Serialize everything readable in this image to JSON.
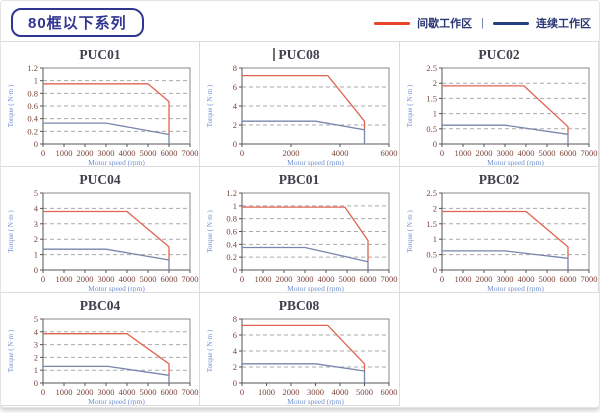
{
  "page": {
    "title": "80框以下系列",
    "legend": {
      "intermittent_label": "间歇工作区",
      "separator": "|",
      "continuous_label": "连续工作区"
    }
  },
  "colors": {
    "header_navy": "#30358f",
    "legend_red": "#e8432d",
    "legend_blue": "#24407e",
    "plot_red": "#e06450",
    "plot_blue": "#7886ad",
    "tick_label": "#7d4339",
    "axis_label_blue": "#6f8fd0",
    "grid_gray": "#aaaaaa",
    "frame_gray": "#8a8a8a",
    "axis_dark": "#555555",
    "chart_title": "#3f3f4d"
  },
  "chart_data": [
    {
      "type": "line",
      "title": "PUC01",
      "title_cursor": false,
      "xlabel": "Motor speed (rpm)",
      "ylabel": "Torque ( N·m )",
      "xlim": [
        0,
        7000
      ],
      "ylim": [
        0,
        1.2
      ],
      "xticks": [
        0,
        1000,
        2000,
        3000,
        4000,
        5000,
        6000,
        7000
      ],
      "yticks": [
        0,
        0.2,
        0.4,
        0.6,
        0.8,
        1,
        1.2
      ],
      "series": [
        {
          "name": "间歇工作区",
          "role": "intermittent",
          "points": [
            [
              0,
              0.95
            ],
            [
              5000,
              0.95
            ],
            [
              6000,
              0.67
            ],
            [
              6000,
              0.15
            ]
          ]
        },
        {
          "name": "连续工作区",
          "role": "continuous",
          "points": [
            [
              0,
              0.33
            ],
            [
              3000,
              0.33
            ],
            [
              6000,
              0.15
            ],
            [
              6000,
              0
            ]
          ]
        }
      ]
    },
    {
      "type": "line",
      "title": "PUC08",
      "title_cursor": true,
      "xlabel": "Motor speed (rpm)",
      "ylabel": "Torque ( N·m )",
      "xlim": [
        0,
        6000
      ],
      "ylim": [
        0,
        8
      ],
      "xticks": [
        0,
        2000,
        4000,
        6000
      ],
      "yticks": [
        0,
        2,
        4,
        6,
        8
      ],
      "series": [
        {
          "name": "间歇工作区",
          "role": "intermittent",
          "points": [
            [
              0,
              7.2
            ],
            [
              3500,
              7.2
            ],
            [
              5000,
              2.4
            ],
            [
              5000,
              1.5
            ]
          ]
        },
        {
          "name": "连续工作区",
          "role": "continuous",
          "points": [
            [
              0,
              2.4
            ],
            [
              3000,
              2.4
            ],
            [
              5000,
              1.5
            ],
            [
              5000,
              0
            ]
          ]
        }
      ]
    },
    {
      "type": "line",
      "title": "PUC02",
      "title_cursor": false,
      "xlabel": "Motor speed (rpm)",
      "ylabel": "Torque ( N·m )",
      "xlim": [
        0,
        7000
      ],
      "ylim": [
        0,
        2.5
      ],
      "xticks": [
        0,
        1000,
        2000,
        3000,
        4000,
        5000,
        6000,
        7000
      ],
      "yticks": [
        0,
        0.5,
        1,
        1.5,
        2,
        2.5
      ],
      "series": [
        {
          "name": "间歇工作区",
          "role": "intermittent",
          "points": [
            [
              0,
              1.91
            ],
            [
              3900,
              1.91
            ],
            [
              6000,
              0.57
            ],
            [
              6000,
              0.33
            ]
          ]
        },
        {
          "name": "连续工作区",
          "role": "continuous",
          "points": [
            [
              0,
              0.62
            ],
            [
              3000,
              0.62
            ],
            [
              6000,
              0.32
            ],
            [
              6000,
              0
            ]
          ]
        }
      ]
    },
    {
      "type": "line",
      "title": "PUC04",
      "title_cursor": false,
      "xlabel": "Motor speed (rpm)",
      "ylabel": "Torque ( N·m )",
      "xlim": [
        0,
        7000
      ],
      "ylim": [
        0,
        5
      ],
      "xticks": [
        0,
        1000,
        2000,
        3000,
        4000,
        5000,
        6000,
        7000
      ],
      "yticks": [
        0,
        1,
        2,
        3,
        4,
        5
      ],
      "series": [
        {
          "name": "间歇工作区",
          "role": "intermittent",
          "points": [
            [
              0,
              3.8
            ],
            [
              4000,
              3.8
            ],
            [
              6000,
              1.5
            ],
            [
              6000,
              0.67
            ]
          ]
        },
        {
          "name": "连续工作区",
          "role": "continuous",
          "points": [
            [
              0,
              1.35
            ],
            [
              3000,
              1.35
            ],
            [
              6000,
              0.65
            ],
            [
              6000,
              0
            ]
          ]
        }
      ]
    },
    {
      "type": "line",
      "title": "PBC01",
      "title_cursor": false,
      "xlabel": "Motor speed (rpm)",
      "ylabel": "Torque ( N·m )",
      "xlim": [
        0,
        7000
      ],
      "ylim": [
        0,
        1.2
      ],
      "xticks": [
        0,
        1000,
        2000,
        3000,
        4000,
        5000,
        6000,
        7000
      ],
      "yticks": [
        0,
        0.2,
        0.4,
        0.6,
        0.8,
        1,
        1.2
      ],
      "series": [
        {
          "name": "间歇工作区",
          "role": "intermittent",
          "points": [
            [
              0,
              0.98
            ],
            [
              4900,
              0.98
            ],
            [
              6000,
              0.46
            ],
            [
              6000,
              0.14
            ]
          ]
        },
        {
          "name": "连续工作区",
          "role": "continuous",
          "points": [
            [
              0,
              0.35
            ],
            [
              3000,
              0.35
            ],
            [
              6000,
              0.13
            ],
            [
              6000,
              0
            ]
          ]
        }
      ]
    },
    {
      "type": "line",
      "title": "PBC02",
      "title_cursor": false,
      "xlabel": "Motor speed (rpm)",
      "ylabel": "Torque ( N·m )",
      "xlim": [
        0,
        7000
      ],
      "ylim": [
        0,
        2.5
      ],
      "xticks": [
        0,
        1000,
        2000,
        3000,
        4000,
        5000,
        6000,
        7000
      ],
      "yticks": [
        0,
        0.5,
        1,
        1.5,
        2,
        2.5
      ],
      "series": [
        {
          "name": "间歇工作区",
          "role": "intermittent",
          "points": [
            [
              0,
              1.9
            ],
            [
              4000,
              1.9
            ],
            [
              6000,
              0.75
            ],
            [
              6000,
              0.4
            ]
          ]
        },
        {
          "name": "连续工作区",
          "role": "continuous",
          "points": [
            [
              0,
              0.62
            ],
            [
              3000,
              0.62
            ],
            [
              6000,
              0.38
            ],
            [
              6000,
              0
            ]
          ]
        }
      ]
    },
    {
      "type": "line",
      "title": "PBC04",
      "title_cursor": false,
      "xlabel": "Motor speed (rpm)",
      "ylabel": "Torque ( N·m )",
      "xlim": [
        0,
        7000
      ],
      "ylim": [
        0,
        5
      ],
      "xticks": [
        0,
        1000,
        2000,
        3000,
        4000,
        5000,
        6000,
        7000
      ],
      "yticks": [
        0,
        1,
        2,
        3,
        4,
        5
      ],
      "series": [
        {
          "name": "间歇工作区",
          "role": "intermittent",
          "points": [
            [
              0,
              3.85
            ],
            [
              4000,
              3.85
            ],
            [
              6000,
              1.5
            ],
            [
              6000,
              0.6
            ]
          ]
        },
        {
          "name": "连续工作区",
          "role": "continuous",
          "points": [
            [
              0,
              1.3
            ],
            [
              3100,
              1.3
            ],
            [
              6000,
              0.6
            ],
            [
              6000,
              0
            ]
          ]
        }
      ]
    },
    {
      "type": "line",
      "title": "PBC08",
      "title_cursor": false,
      "xlabel": "Motor speed (rpm)",
      "ylabel": "Torque ( N·m )",
      "xlim": [
        0,
        6000
      ],
      "ylim": [
        0,
        8
      ],
      "xticks": [
        0,
        1000,
        2000,
        3000,
        4000,
        5000,
        6000
      ],
      "yticks": [
        0,
        2,
        4,
        6,
        8
      ],
      "series": [
        {
          "name": "间歇工作区",
          "role": "intermittent",
          "points": [
            [
              0,
              7.2
            ],
            [
              3500,
              7.2
            ],
            [
              5000,
              2.4
            ],
            [
              5000,
              1.5
            ]
          ]
        },
        {
          "name": "连续工作区",
          "role": "continuous",
          "points": [
            [
              0,
              2.4
            ],
            [
              3000,
              2.4
            ],
            [
              5000,
              1.5
            ],
            [
              5000,
              0
            ]
          ]
        }
      ]
    }
  ]
}
